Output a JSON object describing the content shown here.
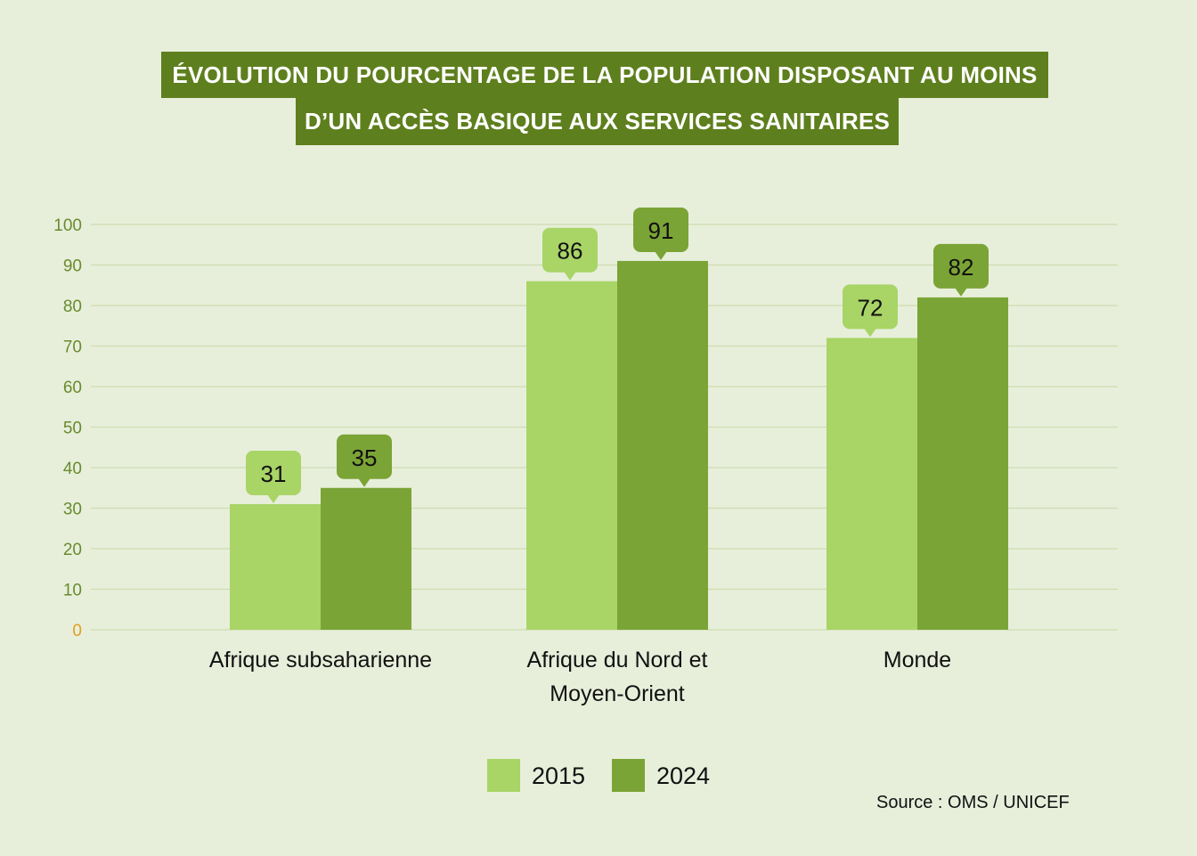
{
  "chart_data": {
    "type": "bar",
    "title_lines": [
      "ÉVOLUTION DU POURCENTAGE DE LA POPULATION DISPOSANT AU MOINS",
      "D’UN ACCÈS BASIQUE AUX SERVICES SANITAIRES"
    ],
    "categories": [
      [
        "Afrique subsaharienne"
      ],
      [
        "Afrique du Nord et",
        "Moyen-Orient"
      ],
      [
        "Monde"
      ]
    ],
    "series": [
      {
        "name": "2015",
        "values": [
          31,
          86,
          72
        ],
        "color": "#a9d466"
      },
      {
        "name": "2024",
        "values": [
          35,
          91,
          82
        ],
        "color": "#7ba436"
      }
    ],
    "ylim": [
      0,
      100
    ],
    "yticks": [
      0,
      10,
      20,
      30,
      40,
      50,
      60,
      70,
      80,
      90,
      100
    ],
    "grid": true,
    "legend_position": "bottom",
    "source": "Source : OMS / UNICEF"
  },
  "colors": {
    "background": "#e7efdb",
    "title_bg": "#5e7f1d",
    "tick": "#6a8b2e",
    "zero_tick": "#e0a020",
    "grid": "#cfdcb0"
  }
}
